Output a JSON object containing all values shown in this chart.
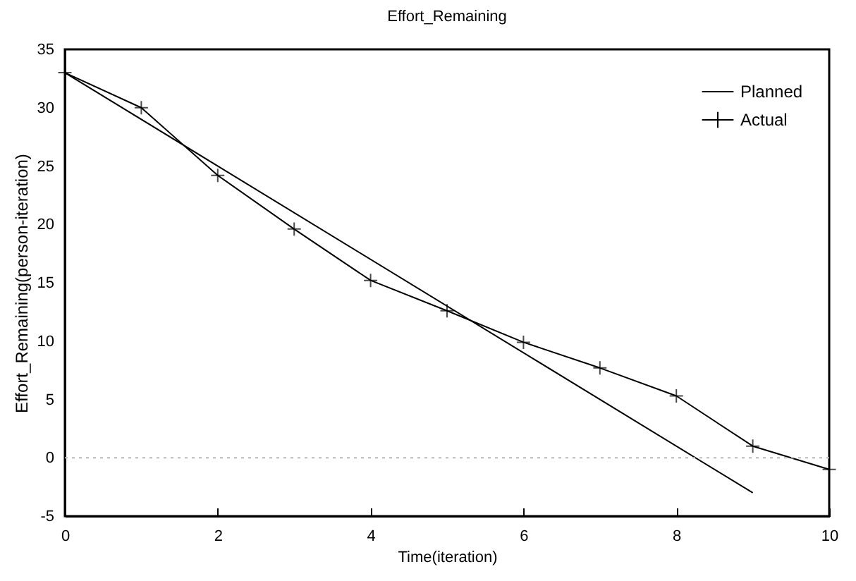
{
  "chart_data": {
    "type": "line",
    "title": "Effort_Remaining",
    "xlabel": "Time(iteration)",
    "ylabel": "Effort_Remaining(person-iteration)",
    "series": [
      {
        "name": "Planned",
        "color": "#000000",
        "x": [
          0,
          9
        ],
        "values": [
          33,
          -3
        ]
      },
      {
        "name": "Actual",
        "color": "#000000",
        "marker": "cross",
        "x": [
          0,
          1,
          2,
          3,
          4,
          5,
          6,
          7,
          8,
          9,
          10
        ],
        "values": [
          33,
          30,
          24.2,
          19.6,
          15.2,
          12.6,
          9.9,
          7.7,
          5.3,
          1,
          -1
        ]
      }
    ],
    "xlim": [
      0,
      10
    ],
    "xticks": [
      0,
      2,
      4,
      6,
      8,
      10
    ],
    "ylim": [
      -5,
      35
    ],
    "yticks": [
      -5,
      0,
      5,
      10,
      15,
      20,
      25,
      30,
      35
    ],
    "grid": false,
    "legend": "top right",
    "line_style": "solid",
    "ref_lines": [
      {
        "axis": "y",
        "value": 0,
        "color": "#bbbbbb",
        "line_style": "dotted"
      }
    ]
  }
}
